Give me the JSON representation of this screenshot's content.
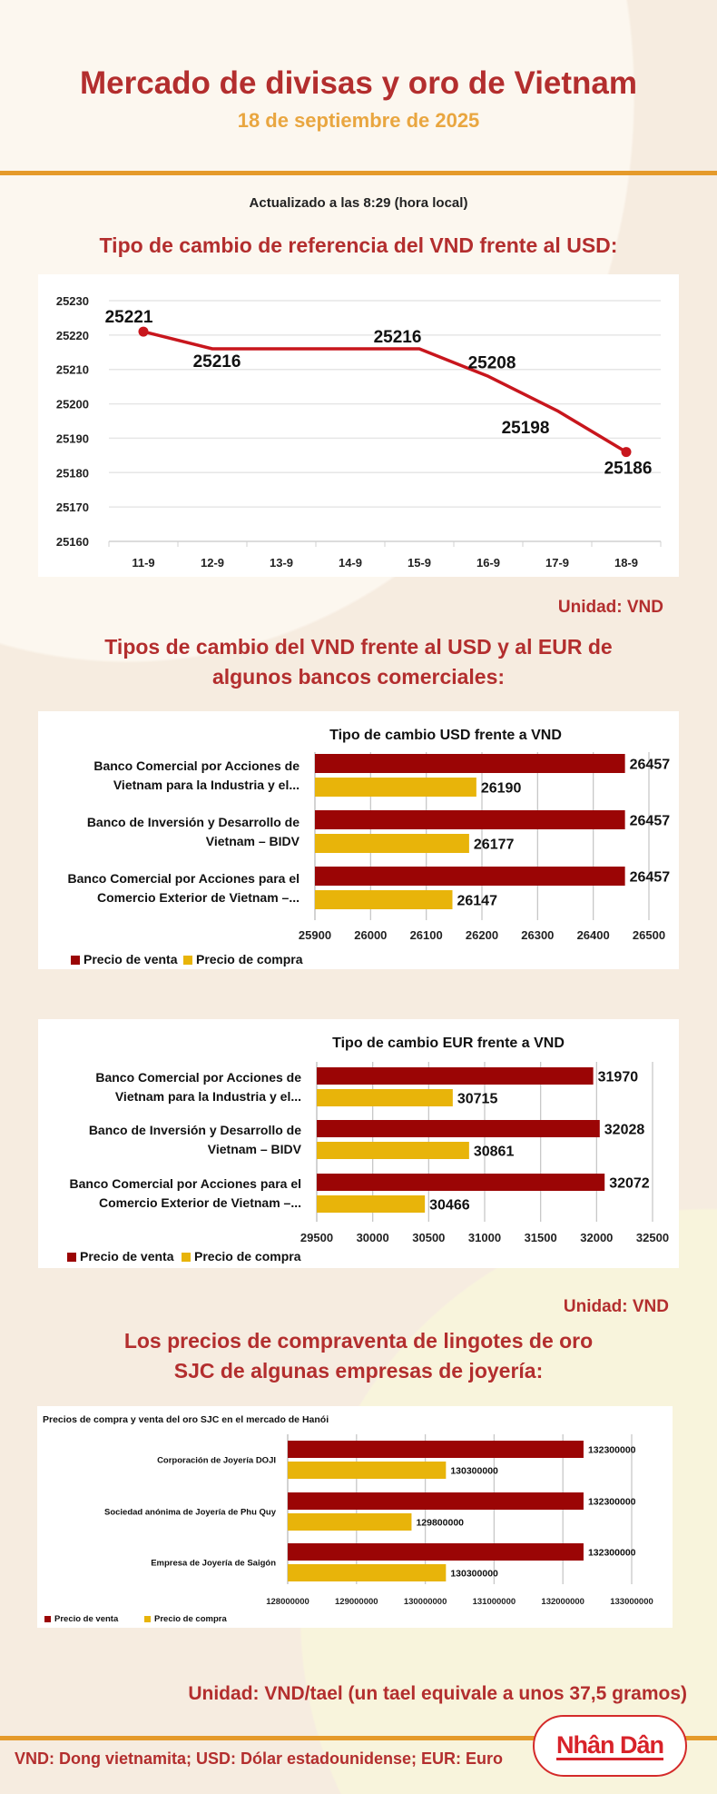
{
  "header": {
    "title": "Mercado de divisas y oro de Vietnam",
    "date": "18 de septiembre de 2025",
    "updated": "Actualizado a las 8:29 (hora local)"
  },
  "section1": {
    "heading": "Tipo de cambio de referencia del VND frente al USD:",
    "unit": "Unidad: VND"
  },
  "section2": {
    "heading_line1": "Tipos de cambio del VND frente al USD y al EUR de",
    "heading_line2": "algunos bancos comerciales:",
    "unit": "Unidad: VND"
  },
  "section3": {
    "heading_line1": "Los precios de compraventa de lingotes de oro",
    "heading_line2": "SJC de algunas empresas de joyería:",
    "unit": "Unidad: VND/tael (un tael equivale a unos 37,5 gramos)"
  },
  "footer": {
    "legend": "VND: Dong vietnamita; USD: Dólar estadounidense; EUR: Euro",
    "logo": "Nhân Dân"
  },
  "colors": {
    "sell": "#9b0505",
    "buy": "#e8b40a",
    "line": "#c8161d",
    "accent": "#e59a2a"
  },
  "chart_data": [
    {
      "type": "line",
      "title": "",
      "x": [
        "11-9",
        "12-9",
        "13-9",
        "14-9",
        "15-9",
        "16-9",
        "17-9",
        "18-9"
      ],
      "values": [
        25221,
        25216,
        25216,
        25216,
        25216,
        25208,
        25198,
        25186
      ],
      "labels": [
        "25221",
        "25216",
        "",
        "",
        "25216",
        "25208",
        "25198",
        "25186"
      ],
      "ylim": [
        25160,
        25230
      ],
      "yticks": [
        "25230",
        "25220",
        "25210",
        "25200",
        "25190",
        "25180",
        "25170",
        "25160"
      ],
      "grid": true
    },
    {
      "type": "bar",
      "title": "Tipo de cambio USD frente a VND",
      "categories": [
        [
          "Banco Comercial por Acciones de",
          "Vietnam para la Industria y el..."
        ],
        [
          "Banco de Inversión y Desarrollo de",
          "Vietnam – BIDV"
        ],
        [
          "Banco Comercial por Acciones para el",
          "Comercio Exterior de Vietnam –..."
        ]
      ],
      "series": [
        {
          "name": "Precio de venta",
          "values": [
            26457,
            26457,
            26457
          ]
        },
        {
          "name": "Precio de compra",
          "values": [
            26190,
            26177,
            26147
          ]
        }
      ],
      "xlim": [
        25900,
        26500
      ],
      "xticks": [
        "25900",
        "26000",
        "26100",
        "26200",
        "26300",
        "26400",
        "26500"
      ],
      "legend": "bottom-left"
    },
    {
      "type": "bar",
      "title": "Tipo de cambio EUR frente a VND",
      "categories": [
        [
          "Banco Comercial por Acciones de",
          "Vietnam para la Industria y el..."
        ],
        [
          "Banco de Inversión y Desarrollo de",
          "Vietnam – BIDV"
        ],
        [
          "Banco Comercial por Acciones para el",
          "Comercio Exterior de Vietnam –..."
        ]
      ],
      "series": [
        {
          "name": "Precio de venta",
          "values": [
            31970,
            32028,
            32072
          ]
        },
        {
          "name": "Precio de compra",
          "values": [
            30715,
            30861,
            30466
          ]
        }
      ],
      "xlim": [
        29500,
        32500
      ],
      "xticks": [
        "29500",
        "30000",
        "30500",
        "31000",
        "31500",
        "32000",
        "32500"
      ],
      "legend": "bottom-left"
    },
    {
      "type": "bar",
      "title": "Precios de compra y venta del oro SJC en el mercado de Hanói",
      "categories": [
        [
          "Corporación de Joyería DOJI"
        ],
        [
          "Sociedad anónima de Joyería de Phu Quy"
        ],
        [
          "Empresa de Joyería de Saigón"
        ]
      ],
      "series": [
        {
          "name": "Precio de venta",
          "values": [
            132300000,
            132300000,
            132300000
          ]
        },
        {
          "name": "Precio de compra",
          "values": [
            130300000,
            129800000,
            130300000
          ]
        }
      ],
      "xlim": [
        128000000,
        133000000
      ],
      "xticks": [
        "128000000",
        "129000000",
        "130000000",
        "131000000",
        "132000000",
        "133000000"
      ],
      "legend": "bottom-left"
    }
  ]
}
